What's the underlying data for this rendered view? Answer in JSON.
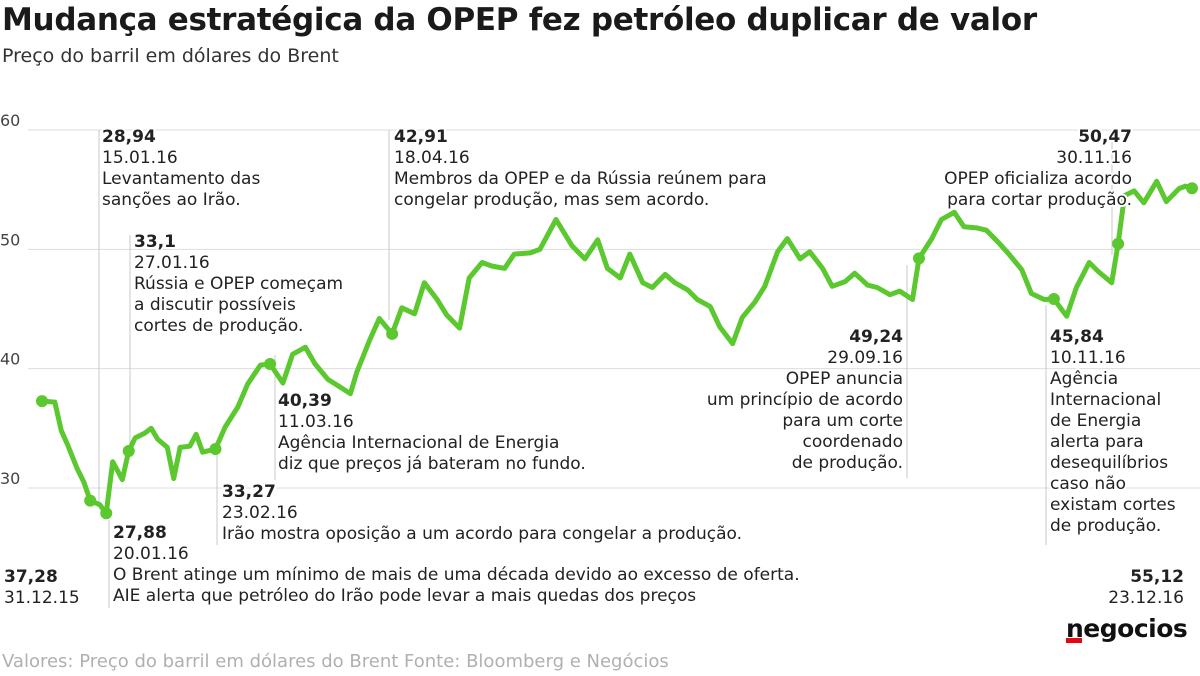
{
  "title": "Mudança estratégica da OPEP fez petróleo duplicar de valor",
  "subtitle": "Preço do barril em dólares do Brent",
  "footer": "Valores: Preço do barril em dólares do Brent Fonte: Bloomberg  e Negócios",
  "logo": "negocios",
  "colors": {
    "line": "#5ac82e",
    "grid": "#dddddd",
    "text": "#222222",
    "footer": "#b0b0b0",
    "logo_accent": "#e30613"
  },
  "chart_data": {
    "type": "line",
    "title": "Mudança estratégica da OPEP fez petróleo duplicar de valor",
    "subtitle": "Preço do barril em dólares do Brent",
    "xlabel": "",
    "ylabel": "",
    "ylim": [
      20,
      60
    ],
    "yticks": [
      30,
      40,
      50,
      60
    ],
    "xlim": [
      "2015-12-31",
      "2016-12-23"
    ],
    "grid": true,
    "series": [
      {
        "values": [
          [
            "2015-12-31",
            37.28
          ],
          [
            "2016-01-04",
            37.2
          ],
          [
            "2016-01-06",
            34.8
          ],
          [
            "2016-01-08",
            33.6
          ],
          [
            "2016-01-11",
            31.6
          ],
          [
            "2016-01-13",
            30.5
          ],
          [
            "2016-01-15",
            28.94
          ],
          [
            "2016-01-18",
            28.6
          ],
          [
            "2016-01-20",
            27.88
          ],
          [
            "2016-01-22",
            32.2
          ],
          [
            "2016-01-25",
            30.7
          ],
          [
            "2016-01-27",
            33.1
          ],
          [
            "2016-01-29",
            34.2
          ],
          [
            "2016-02-01",
            34.6
          ],
          [
            "2016-02-03",
            35.0
          ],
          [
            "2016-02-05",
            34.1
          ],
          [
            "2016-02-08",
            33.4
          ],
          [
            "2016-02-10",
            30.8
          ],
          [
            "2016-02-12",
            33.4
          ],
          [
            "2016-02-15",
            33.5
          ],
          [
            "2016-02-17",
            34.5
          ],
          [
            "2016-02-19",
            33.0
          ],
          [
            "2016-02-23",
            33.27
          ],
          [
            "2016-02-26",
            35.1
          ],
          [
            "2016-03-01",
            36.8
          ],
          [
            "2016-03-04",
            38.7
          ],
          [
            "2016-03-08",
            40.3
          ],
          [
            "2016-03-11",
            40.39
          ],
          [
            "2016-03-15",
            38.8
          ],
          [
            "2016-03-18",
            41.2
          ],
          [
            "2016-03-22",
            41.8
          ],
          [
            "2016-03-25",
            40.4
          ],
          [
            "2016-03-29",
            39.1
          ],
          [
            "2016-04-01",
            38.6
          ],
          [
            "2016-04-05",
            37.9
          ],
          [
            "2016-04-07",
            39.7
          ],
          [
            "2016-04-11",
            42.4
          ],
          [
            "2016-04-14",
            44.2
          ],
          [
            "2016-04-18",
            42.91
          ],
          [
            "2016-04-21",
            45.1
          ],
          [
            "2016-04-25",
            44.6
          ],
          [
            "2016-04-28",
            47.2
          ],
          [
            "2016-05-02",
            45.8
          ],
          [
            "2016-05-05",
            44.5
          ],
          [
            "2016-05-09",
            43.4
          ],
          [
            "2016-05-12",
            47.6
          ],
          [
            "2016-05-16",
            48.9
          ],
          [
            "2016-05-19",
            48.6
          ],
          [
            "2016-05-23",
            48.4
          ],
          [
            "2016-05-26",
            49.6
          ],
          [
            "2016-05-31",
            49.7
          ],
          [
            "2016-06-03",
            50.0
          ],
          [
            "2016-06-08",
            52.5
          ],
          [
            "2016-06-13",
            50.3
          ],
          [
            "2016-06-17",
            49.2
          ],
          [
            "2016-06-21",
            50.8
          ],
          [
            "2016-06-24",
            48.4
          ],
          [
            "2016-06-28",
            47.6
          ],
          [
            "2016-07-01",
            49.6
          ],
          [
            "2016-07-05",
            47.2
          ],
          [
            "2016-07-08",
            46.8
          ],
          [
            "2016-07-12",
            47.9
          ],
          [
            "2016-07-15",
            47.2
          ],
          [
            "2016-07-19",
            46.6
          ],
          [
            "2016-07-22",
            45.8
          ],
          [
            "2016-07-26",
            45.2
          ],
          [
            "2016-07-29",
            43.5
          ],
          [
            "2016-08-02",
            42.1
          ],
          [
            "2016-08-05",
            44.3
          ],
          [
            "2016-08-09",
            45.6
          ],
          [
            "2016-08-12",
            46.9
          ],
          [
            "2016-08-16",
            49.8
          ],
          [
            "2016-08-19",
            50.9
          ],
          [
            "2016-08-23",
            49.2
          ],
          [
            "2016-08-26",
            49.8
          ],
          [
            "2016-08-30",
            48.4
          ],
          [
            "2016-09-02",
            46.9
          ],
          [
            "2016-09-06",
            47.3
          ],
          [
            "2016-09-09",
            48.0
          ],
          [
            "2016-09-13",
            47.0
          ],
          [
            "2016-09-16",
            46.8
          ],
          [
            "2016-09-20",
            46.2
          ],
          [
            "2016-09-23",
            46.5
          ],
          [
            "2016-09-27",
            45.8
          ],
          [
            "2016-09-29",
            49.24
          ],
          [
            "2016-10-03",
            50.9
          ],
          [
            "2016-10-06",
            52.5
          ],
          [
            "2016-10-10",
            53.1
          ],
          [
            "2016-10-13",
            51.9
          ],
          [
            "2016-10-17",
            51.8
          ],
          [
            "2016-10-20",
            51.6
          ],
          [
            "2016-10-24",
            50.5
          ],
          [
            "2016-10-27",
            49.6
          ],
          [
            "2016-10-31",
            48.3
          ],
          [
            "2016-11-03",
            46.3
          ],
          [
            "2016-11-07",
            45.8
          ],
          [
            "2016-11-10",
            45.84
          ],
          [
            "2016-11-14",
            44.4
          ],
          [
            "2016-11-17",
            46.8
          ],
          [
            "2016-11-21",
            48.9
          ],
          [
            "2016-11-24",
            48.1
          ],
          [
            "2016-11-28",
            47.2
          ],
          [
            "2016-11-30",
            50.47
          ],
          [
            "2016-12-02",
            54.5
          ],
          [
            "2016-12-05",
            54.9
          ],
          [
            "2016-12-08",
            53.9
          ],
          [
            "2016-12-12",
            55.7
          ],
          [
            "2016-12-15",
            54.0
          ],
          [
            "2016-12-19",
            55.1
          ],
          [
            "2016-12-21",
            55.3
          ],
          [
            "2016-12-23",
            55.12
          ]
        ]
      }
    ],
    "annotations": [
      {
        "value": "37,28",
        "date": "31.12.15",
        "text": []
      },
      {
        "value": "28,94",
        "date": "15.01.16",
        "text": [
          "Levantamento das",
          "sanções ao Irão."
        ]
      },
      {
        "value": "27,88",
        "date": "20.01.16",
        "text": [
          "O Brent atinge um mínimo de mais de uma década devido ao excesso de oferta.",
          "AIE alerta que petróleo do Irão pode levar a mais quedas dos preços"
        ]
      },
      {
        "value": "33,1",
        "date": "27.01.16",
        "text": [
          "Rússia e OPEP começam",
          "a discutir possíveis",
          "cortes de produção."
        ]
      },
      {
        "value": "33,27",
        "date": "23.02.16",
        "text": [
          "Irão mostra oposição a um acordo para congelar a produção."
        ]
      },
      {
        "value": "40,39",
        "date": "11.03.16",
        "text": [
          "Agência Internacional de Energia",
          "diz que preços já bateram no fundo."
        ]
      },
      {
        "value": "42,91",
        "date": "18.04.16",
        "text": [
          "Membros da OPEP e da Rússia reúnem para",
          "congelar produção, mas sem acordo."
        ]
      },
      {
        "value": "49,24",
        "date": "29.09.16",
        "text": [
          "OPEP anuncia",
          "um princípio de acordo",
          "para um corte",
          "coordenado",
          "de produção."
        ]
      },
      {
        "value": "45,84",
        "date": "10.11.16",
        "text": [
          "Agência",
          "Internacional",
          "de Energia",
          "alerta para",
          "desequilíbrios",
          "caso não",
          "existam cortes",
          "de produção."
        ]
      },
      {
        "value": "50,47",
        "date": "30.11.16",
        "text": [
          "OPEP oficializa acordo",
          "para cortar produção."
        ]
      },
      {
        "value": "55,12",
        "date": "23.12.16",
        "text": []
      }
    ]
  }
}
